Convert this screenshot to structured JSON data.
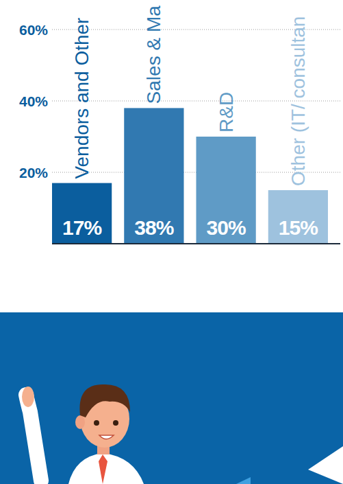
{
  "chart_data": {
    "type": "bar",
    "categories": [
      "Vendors and Other",
      "Sales & Ma",
      "R&D",
      "Other (IT/ consultan"
    ],
    "values": [
      17,
      38,
      30,
      15
    ],
    "value_labels": [
      "17%",
      "38%",
      "30%",
      "15%"
    ],
    "colors": [
      "#0b5e9e",
      "#3179b1",
      "#5f9bc6",
      "#9ec2de"
    ],
    "ylim": [
      0,
      60
    ],
    "yticks": [
      {
        "value": 20,
        "label": "20%"
      },
      {
        "value": 40,
        "label": "40%"
      },
      {
        "value": 60,
        "label": "60%"
      }
    ],
    "grid": true,
    "data_labels": true
  }
}
